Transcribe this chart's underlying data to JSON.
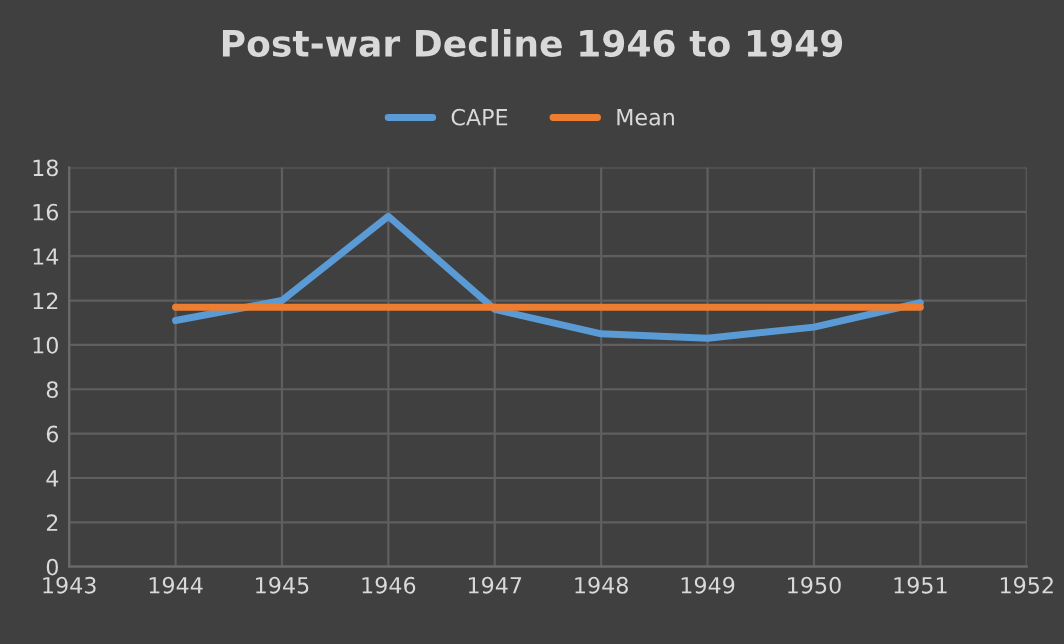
{
  "chart_data": {
    "type": "line",
    "title": "Post-war Decline 1946 to 1949",
    "x": [
      1944,
      1945,
      1946,
      1947,
      1948,
      1949,
      1950,
      1951
    ],
    "series": [
      {
        "name": "CAPE",
        "color": "#5b9bd5",
        "values": [
          11.1,
          12.0,
          15.8,
          11.6,
          10.5,
          10.3,
          10.8,
          11.9
        ]
      },
      {
        "name": "Mean",
        "color": "#ed7d31",
        "values": [
          11.7,
          11.7,
          11.7,
          11.7,
          11.7,
          11.7,
          11.7,
          11.7
        ]
      }
    ],
    "xlim": [
      1943,
      1952
    ],
    "xticks": [
      1943,
      1944,
      1945,
      1946,
      1947,
      1948,
      1949,
      1950,
      1951,
      1952
    ],
    "ylim": [
      0,
      18
    ],
    "yticks": [
      0,
      2,
      4,
      6,
      8,
      10,
      12,
      14,
      16,
      18
    ],
    "grid": true,
    "legend": "top",
    "marker": "none",
    "line_style": "solid"
  }
}
